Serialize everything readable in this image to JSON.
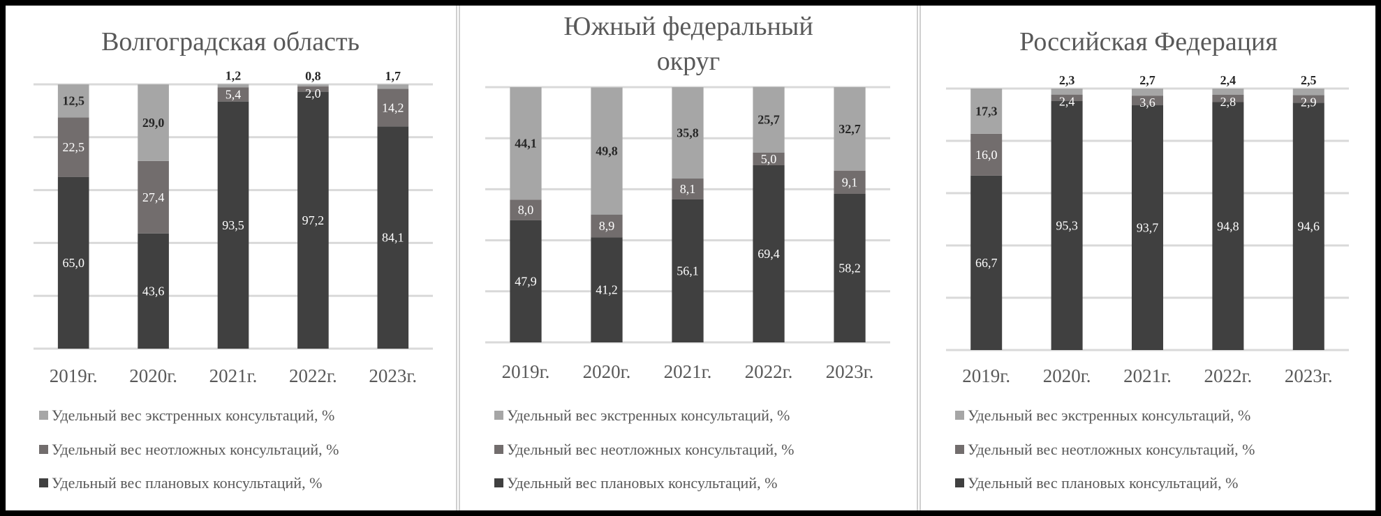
{
  "chart_data": [
    {
      "type": "bar",
      "stacked": true,
      "title": "Волгоградская область",
      "categories": [
        "2019г.",
        "2020г.",
        "2021г.",
        "2022г.",
        "2023г."
      ],
      "ylim": [
        0,
        100
      ],
      "grid": true,
      "legend_position": "bottom",
      "series": [
        {
          "name": "Удельный вес плановых консультаций, %",
          "color": "#404040",
          "values": [
            65.0,
            43.6,
            93.5,
            97.2,
            84.1
          ],
          "labels": [
            "65,0",
            "43,6",
            "93,5",
            "97,2",
            "84,1"
          ]
        },
        {
          "name": "Удельный вес неотложных консультаций, %",
          "color": "#726d6d",
          "values": [
            22.5,
            27.4,
            5.4,
            2.0,
            14.2
          ],
          "labels": [
            "22,5",
            "27,4",
            "5,4",
            "2,0",
            "14,2"
          ]
        },
        {
          "name": "Удельный вес экстренных консультаций, %",
          "color": "#a6a6a6",
          "values": [
            12.5,
            29.0,
            1.2,
            0.8,
            1.7
          ],
          "labels": [
            "12,5",
            "29,0",
            "1,2",
            "0,8",
            "1,7"
          ]
        }
      ]
    },
    {
      "type": "bar",
      "stacked": true,
      "title": "Южный федеральный округ",
      "categories": [
        "2019г.",
        "2020г.",
        "2021г.",
        "2022г.",
        "2023г."
      ],
      "ylim": [
        0,
        100
      ],
      "grid": true,
      "legend_position": "bottom",
      "series": [
        {
          "name": "Удельный вес плановых консультаций, %",
          "color": "#404040",
          "values": [
            47.9,
            41.2,
            56.1,
            69.4,
            58.2
          ],
          "labels": [
            "47,9",
            "41,2",
            "56,1",
            "69,4",
            "58,2"
          ]
        },
        {
          "name": "Удельный вес неотложных консультаций, %",
          "color": "#726d6d",
          "values": [
            8.0,
            8.9,
            8.1,
            5.0,
            9.1
          ],
          "labels": [
            "8,0",
            "8,9",
            "8,1",
            "5,0",
            "9,1"
          ]
        },
        {
          "name": "Удельный вес экстренных консультаций, %",
          "color": "#a6a6a6",
          "values": [
            44.1,
            49.8,
            35.8,
            25.7,
            32.7
          ],
          "labels": [
            "44,1",
            "49,8",
            "35,8",
            "25,7",
            "32,7"
          ]
        }
      ]
    },
    {
      "type": "bar",
      "stacked": true,
      "title": "Российская Федерация",
      "categories": [
        "2019г.",
        "2020г.",
        "2021г.",
        "2022г.",
        "2023г."
      ],
      "ylim": [
        0,
        100
      ],
      "grid": true,
      "legend_position": "bottom",
      "series": [
        {
          "name": "Удельный вес плановых консультаций, %",
          "color": "#404040",
          "values": [
            66.7,
            95.3,
            93.7,
            94.8,
            94.6
          ],
          "labels": [
            "66,7",
            "95,3",
            "93,7",
            "94,8",
            "94,6"
          ]
        },
        {
          "name": "Удельный вес неотложных консультаций, %",
          "color": "#726d6d",
          "values": [
            16.0,
            2.4,
            3.6,
            2.8,
            2.9
          ],
          "labels": [
            "16,0",
            "2,4",
            "3,6",
            "2,8",
            "2,9"
          ]
        },
        {
          "name": "Удельный вес экстренных консультаций, %",
          "color": "#a6a6a6",
          "values": [
            17.3,
            2.3,
            2.7,
            2.4,
            2.5
          ],
          "labels": [
            "17,3",
            "2,3",
            "2,7",
            "2,4",
            "2,5"
          ]
        }
      ]
    }
  ]
}
